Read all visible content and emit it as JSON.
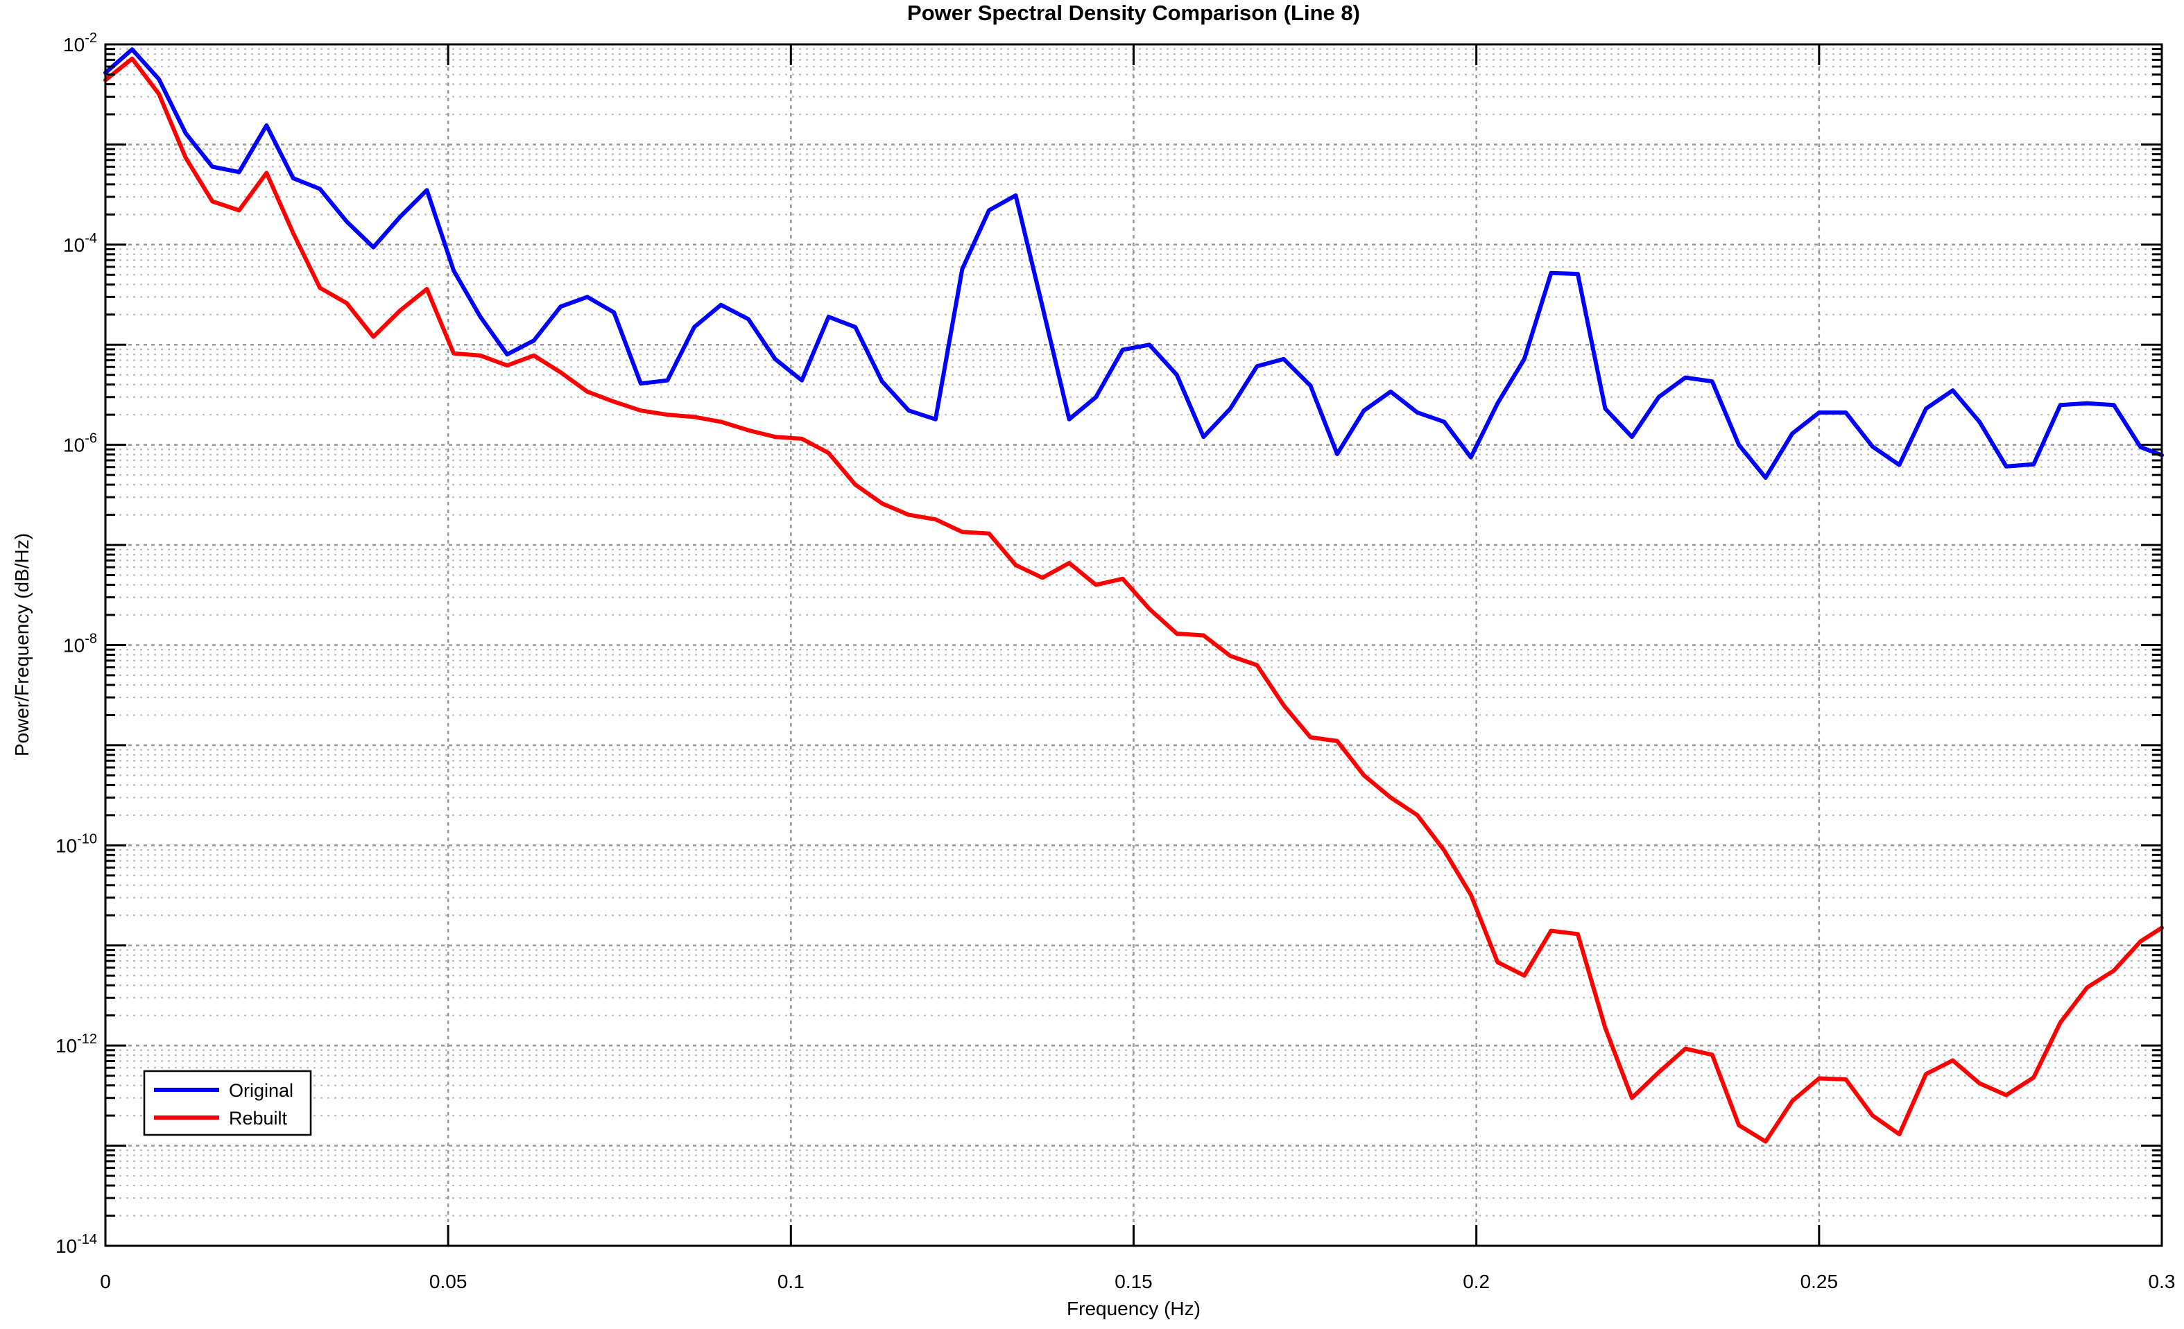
{
  "chart_data": {
    "type": "line",
    "title": "Power Spectral Density Comparison (Line 8)",
    "xlabel": "Frequency (Hz)",
    "ylabel": "Power/Frequency (dB/Hz)",
    "xlim": [
      0,
      0.3
    ],
    "ylim": [
      1e-14,
      0.01
    ],
    "y_scale": "log",
    "grid": {
      "major": true,
      "minor": true,
      "style": "dotted",
      "major_color": "#999999",
      "minor_color": "#bdbdbd"
    },
    "axis_color": "#000000",
    "background_color": "#ffffff",
    "x_ticks": [
      {
        "value": 0.0,
        "label": "0"
      },
      {
        "value": 0.05,
        "label": "0.05"
      },
      {
        "value": 0.1,
        "label": "0.1"
      },
      {
        "value": 0.15,
        "label": "0.15"
      },
      {
        "value": 0.2,
        "label": "0.2"
      },
      {
        "value": 0.25,
        "label": "0.25"
      },
      {
        "value": 0.3,
        "label": "0.3"
      }
    ],
    "y_tick_exponents": [
      -2,
      -4,
      -6,
      -8,
      -10,
      -12,
      -14
    ],
    "legend": {
      "position": "lower-left",
      "entries": [
        "Original",
        "Rebuilt"
      ]
    },
    "series": [
      {
        "name": "Original",
        "color": "#0000ff",
        "x": [
          0.0,
          0.0039,
          0.0078,
          0.0117,
          0.0156,
          0.0195,
          0.0235,
          0.0274,
          0.0313,
          0.0352,
          0.0391,
          0.043,
          0.0469,
          0.0508,
          0.0547,
          0.0586,
          0.0625,
          0.0664,
          0.0703,
          0.0742,
          0.0781,
          0.082,
          0.0859,
          0.0898,
          0.0938,
          0.0977,
          0.1016,
          0.1055,
          0.1094,
          0.1133,
          0.1172,
          0.1211,
          0.125,
          0.1289,
          0.1328,
          0.1367,
          0.1406,
          0.1445,
          0.1484,
          0.1523,
          0.1563,
          0.1602,
          0.1641,
          0.168,
          0.1719,
          0.1758,
          0.1797,
          0.1836,
          0.1875,
          0.1914,
          0.1953,
          0.1992,
          0.2031,
          0.207,
          0.2109,
          0.2148,
          0.2188,
          0.2227,
          0.2266,
          0.2305,
          0.2344,
          0.2383,
          0.2422,
          0.2461,
          0.25,
          0.2539,
          0.2578,
          0.2617,
          0.2656,
          0.2695,
          0.2734,
          0.2773,
          0.2813,
          0.2852,
          0.2891,
          0.293,
          0.2969,
          0.3
        ],
        "y": [
          0.0052,
          0.0089,
          0.0045,
          0.0013,
          0.0006,
          0.00053,
          0.00155,
          0.00046,
          0.00036,
          0.00017,
          9.4e-05,
          0.00019,
          0.00035,
          5.5e-05,
          1.9e-05,
          8e-06,
          1.1e-05,
          2.4e-05,
          3e-05,
          2.1e-05,
          4.1e-06,
          4.4e-06,
          1.5e-05,
          2.5e-05,
          1.8e-05,
          7.2e-06,
          4.4e-06,
          1.9e-05,
          1.5e-05,
          4.3e-06,
          2.2e-06,
          1.8e-06,
          5.7e-05,
          0.00022,
          0.00031,
          2.4e-05,
          1.8e-06,
          3e-06,
          8.9e-06,
          1e-05,
          5e-06,
          1.2e-06,
          2.3e-06,
          6.1e-06,
          7.2e-06,
          3.9e-06,
          8.1e-07,
          2.2e-06,
          3.4e-06,
          2.1e-06,
          1.7e-06,
          7.5e-07,
          2.6e-06,
          7.2e-06,
          5.2e-05,
          5.1e-05,
          2.3e-06,
          1.2e-06,
          3e-06,
          4.7e-06,
          4.3e-06,
          1e-06,
          4.7e-07,
          1.3e-06,
          2.1e-06,
          2.1e-06,
          9.6e-07,
          6.3e-07,
          2.3e-06,
          3.5e-06,
          1.7e-06,
          6.1e-07,
          6.4e-07,
          2.5e-06,
          2.6e-06,
          2.5e-06,
          9.5e-07,
          7.9e-07
        ]
      },
      {
        "name": "Rebuilt",
        "color": "#ff0000",
        "x": [
          0.0,
          0.0039,
          0.0078,
          0.0117,
          0.0156,
          0.0195,
          0.0235,
          0.0274,
          0.0313,
          0.0352,
          0.0391,
          0.043,
          0.0469,
          0.0508,
          0.0547,
          0.0586,
          0.0625,
          0.0664,
          0.0703,
          0.0742,
          0.0781,
          0.082,
          0.0859,
          0.0898,
          0.0938,
          0.0977,
          0.1016,
          0.1055,
          0.1094,
          0.1133,
          0.1172,
          0.1211,
          0.125,
          0.1289,
          0.1328,
          0.1367,
          0.1406,
          0.1445,
          0.1484,
          0.1523,
          0.1563,
          0.1602,
          0.1641,
          0.168,
          0.1719,
          0.1758,
          0.1797,
          0.1836,
          0.1875,
          0.1914,
          0.1953,
          0.1992,
          0.2031,
          0.207,
          0.2109,
          0.2148,
          0.2188,
          0.2227,
          0.2266,
          0.2305,
          0.2344,
          0.2383,
          0.2422,
          0.2461,
          0.25,
          0.2539,
          0.2578,
          0.2617,
          0.2656,
          0.2695,
          0.2734,
          0.2773,
          0.2813,
          0.2852,
          0.2891,
          0.293,
          0.2969,
          0.3
        ],
        "y": [
          0.0044,
          0.0072,
          0.0032,
          0.00074,
          0.00027,
          0.00022,
          0.00052,
          0.00013,
          3.7e-05,
          2.6e-05,
          1.2e-05,
          2.2e-05,
          3.6e-05,
          8.2e-06,
          7.8e-06,
          6.2e-06,
          7.8e-06,
          5.3e-06,
          3.4e-06,
          2.7e-06,
          2.2e-06,
          2e-06,
          1.9e-06,
          1.7e-06,
          1.4e-06,
          1.2e-06,
          1.15e-06,
          8.3e-07,
          4e-07,
          2.6e-07,
          2e-07,
          1.8e-07,
          1.35e-07,
          1.3e-07,
          6.3e-08,
          4.7e-08,
          6.6e-08,
          4e-08,
          4.6e-08,
          2.3e-08,
          1.3e-08,
          1.25e-08,
          7.8e-09,
          6.3e-09,
          2.5e-09,
          1.2e-09,
          1.1e-09,
          5e-10,
          3e-10,
          2e-10,
          8.9e-11,
          3.2e-11,
          6.8e-12,
          5e-12,
          1.4e-11,
          1.3e-11,
          1.5e-12,
          3e-13,
          5.4e-13,
          9.3e-13,
          8.1e-13,
          1.6e-13,
          1.1e-13,
          2.8e-13,
          4.7e-13,
          4.6e-13,
          2e-13,
          1.3e-13,
          5.2e-13,
          7.1e-13,
          4.2e-13,
          3.2e-13,
          4.8e-13,
          1.7e-12,
          3.8e-12,
          5.6e-12,
          1.1e-11,
          1.5e-11
        ]
      }
    ]
  }
}
